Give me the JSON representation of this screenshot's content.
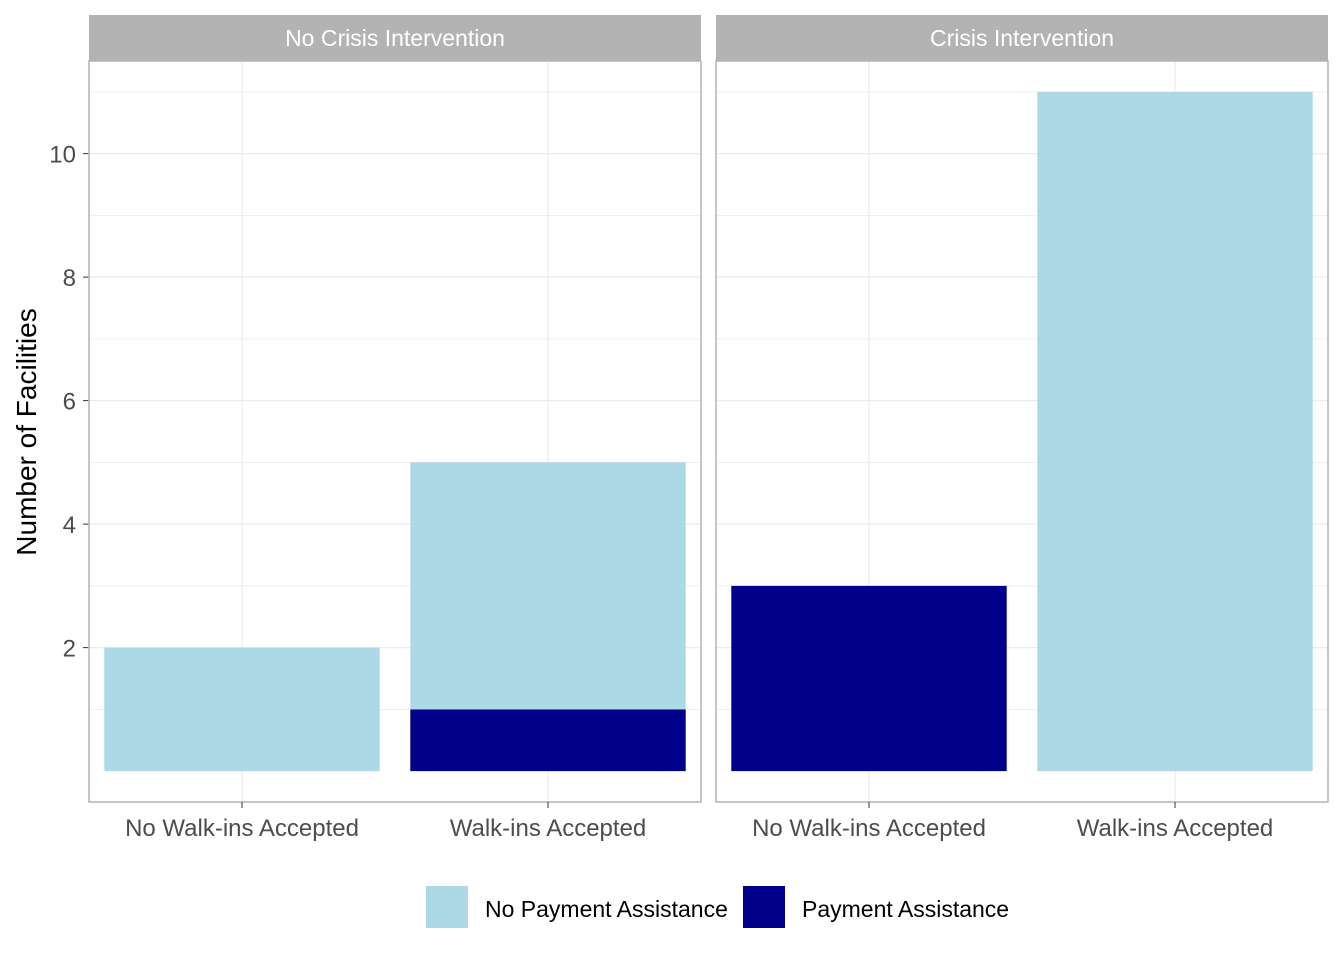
{
  "chart_data": {
    "type": "bar",
    "stacked": true,
    "ylabel": "Number of Facilities",
    "xlabel": "",
    "ylim": [
      -0.5,
      11.5
    ],
    "y_ticks": [
      2,
      4,
      6,
      8,
      10
    ],
    "categories": [
      "No Walk-ins Accepted",
      "Walk-ins Accepted"
    ],
    "series_names": [
      "No Payment Assistance",
      "Payment Assistance"
    ],
    "colors": {
      "No Payment Assistance": "#ADD8E6",
      "Payment Assistance": "#00008B",
      "strip_fill": "#B3B3B3",
      "strip_text": "#FFFFFF",
      "panel_border": "#B3B3B3",
      "grid": "#EBEBEB",
      "tick_text": "#4D4D4D"
    },
    "grid": true,
    "legend": {
      "position": "bottom",
      "entries": [
        "No Payment Assistance",
        "Payment Assistance"
      ]
    },
    "facets": [
      {
        "title": "No Crisis Intervention",
        "series": [
          {
            "name": "No Payment Assistance",
            "values": [
              2,
              4
            ]
          },
          {
            "name": "Payment Assistance",
            "values": [
              0,
              1
            ]
          }
        ]
      },
      {
        "title": "Crisis Intervention",
        "series": [
          {
            "name": "No Payment Assistance",
            "values": [
              0,
              11
            ]
          },
          {
            "name": "Payment Assistance",
            "values": [
              3,
              0
            ]
          }
        ]
      }
    ]
  }
}
